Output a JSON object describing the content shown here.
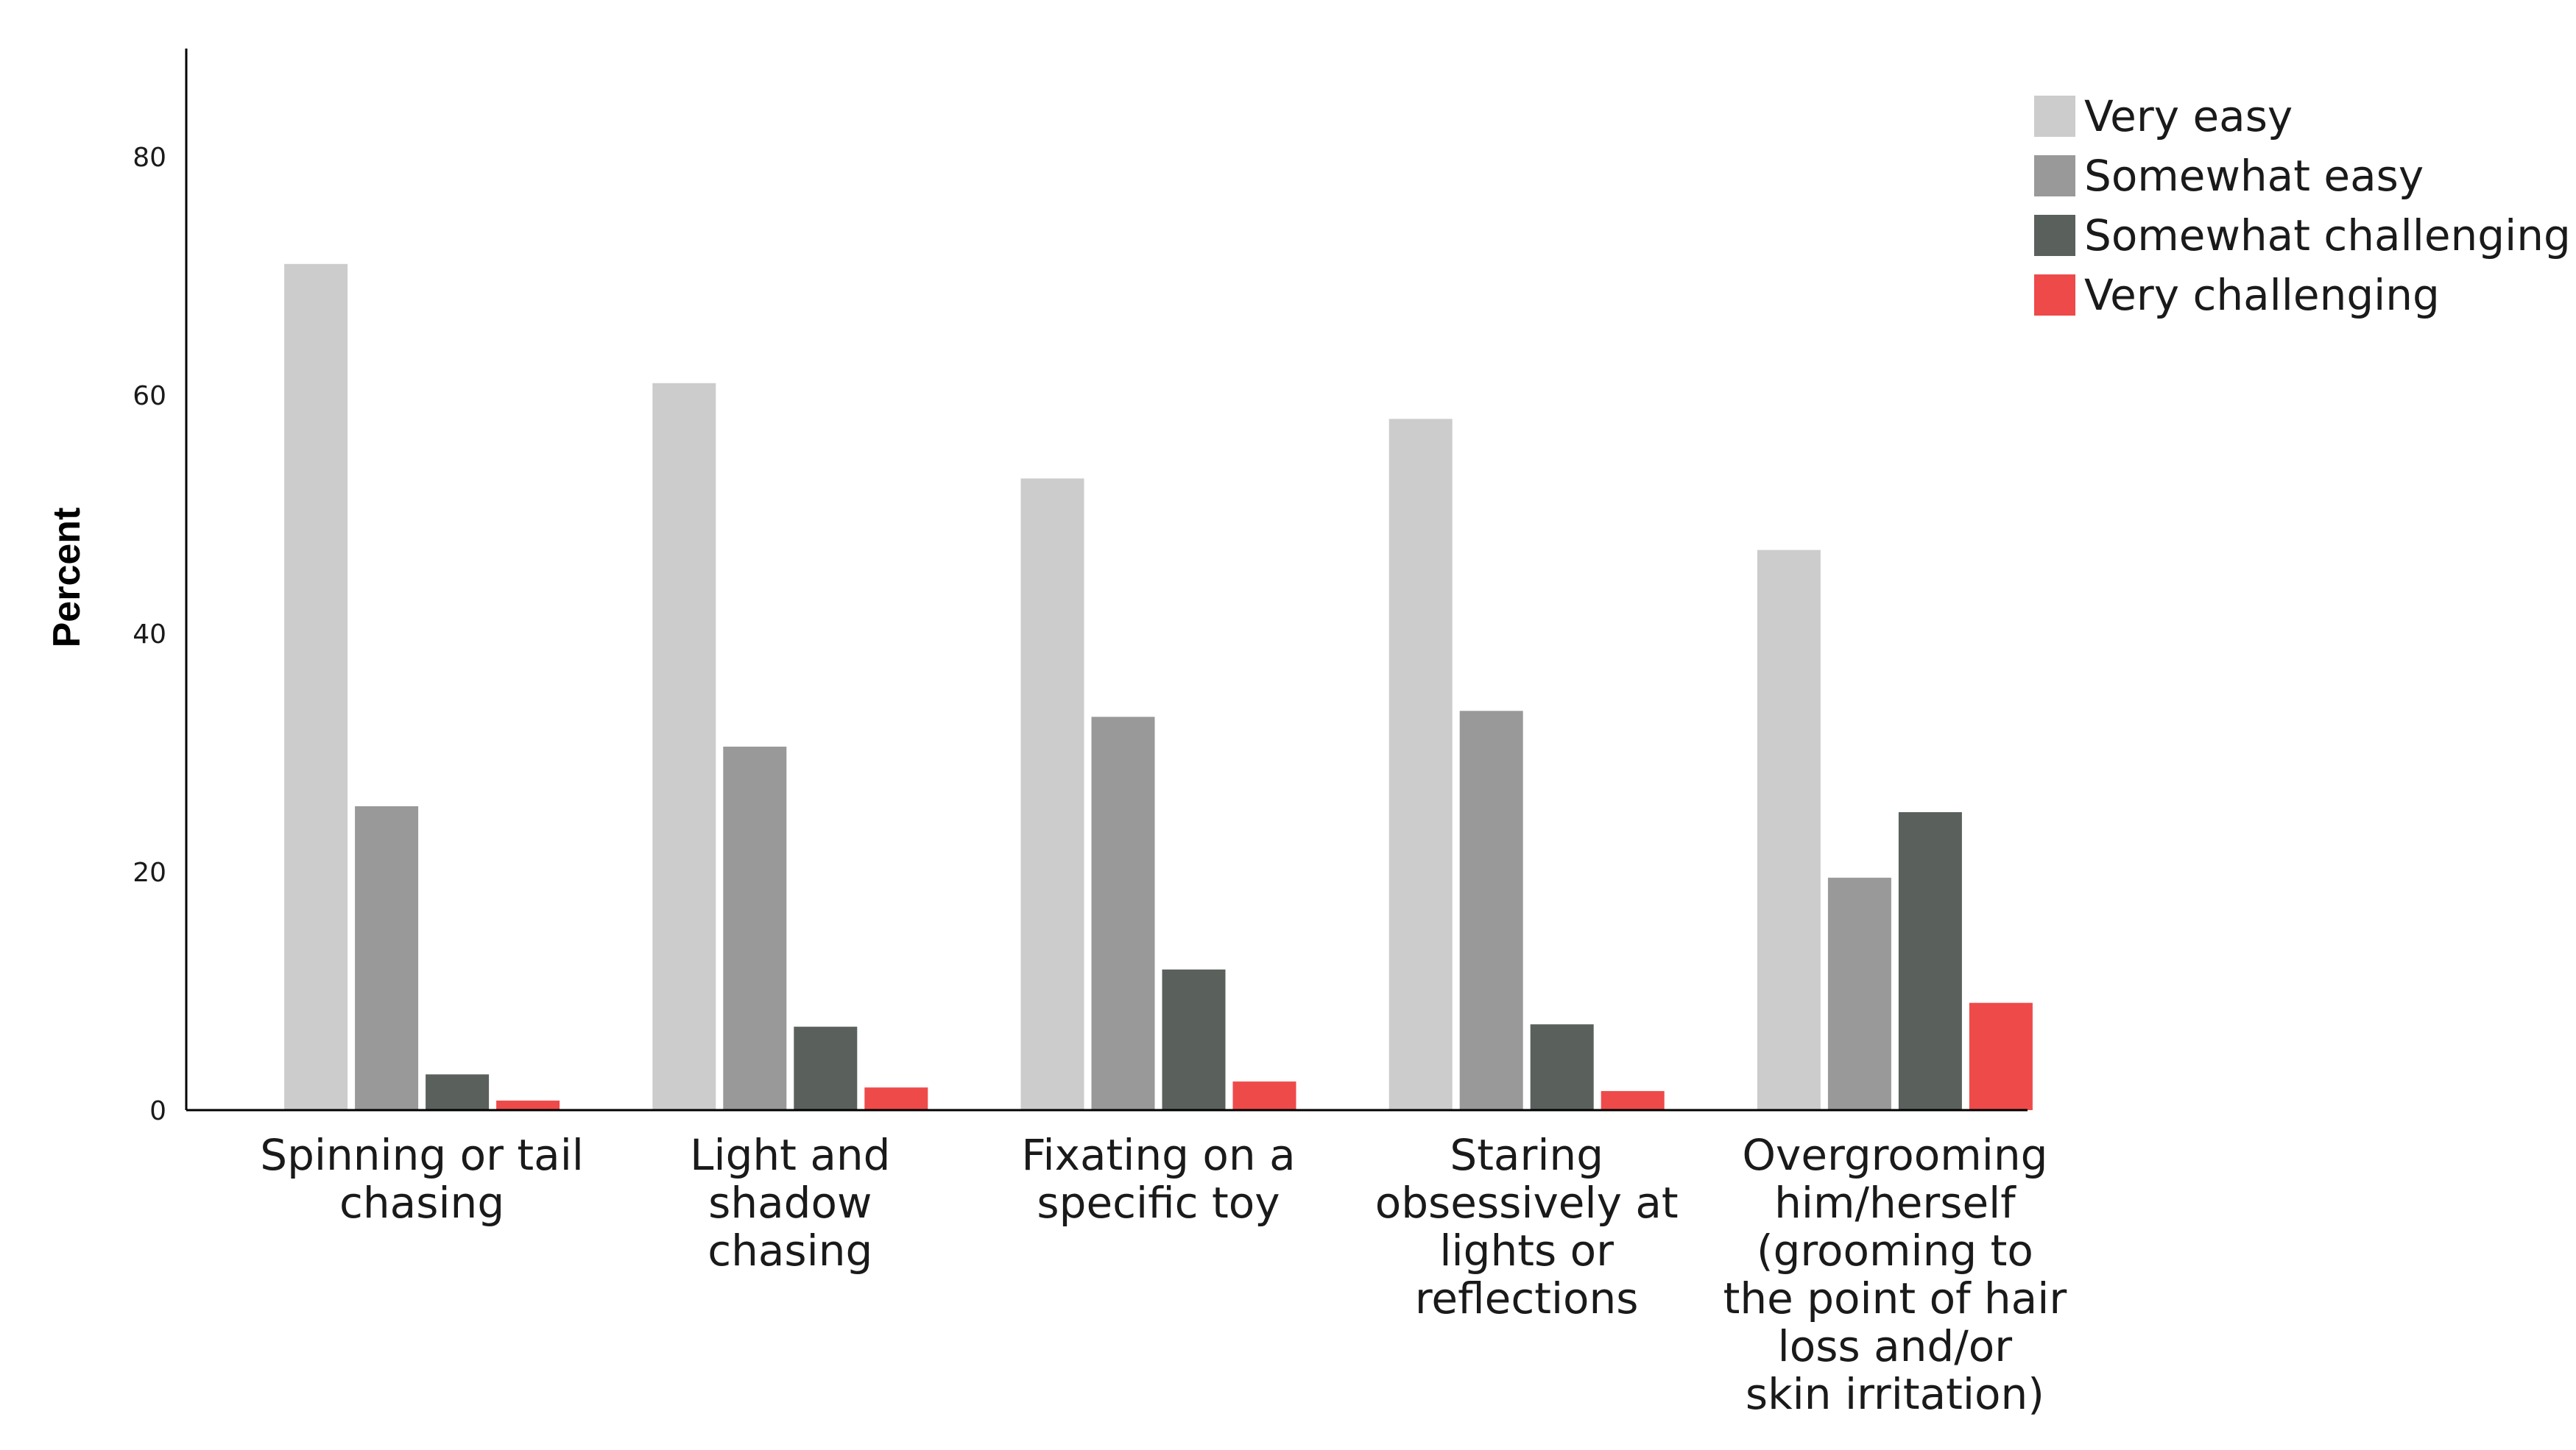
{
  "chart_data": {
    "type": "bar",
    "title": "",
    "xlabel": "",
    "ylabel": "Percent",
    "ylim": [
      0,
      89
    ],
    "yticks": [
      0,
      20,
      40,
      60,
      80
    ],
    "grid": false,
    "legend_position": "top-right",
    "categories": [
      [
        "Spinning or tail",
        "chasing"
      ],
      [
        "Light and",
        "shadow",
        "chasing"
      ],
      [
        "Fixating on a",
        "specific toy"
      ],
      [
        "Staring",
        "obsessively at",
        "lights or",
        "reflections"
      ],
      [
        "Overgrooming",
        "him/herself",
        "(grooming to",
        "the point of hair",
        "loss and/or",
        "skin irritation)"
      ]
    ],
    "series": [
      {
        "name": "Very easy",
        "color": "#cccccc",
        "values": [
          71,
          61,
          53,
          58,
          47
        ]
      },
      {
        "name": "Somewhat easy",
        "color": "#999999",
        "values": [
          25.5,
          30.5,
          33,
          33.5,
          19.5
        ]
      },
      {
        "name": "Somewhat challenging",
        "color": "#5a605c",
        "values": [
          3,
          7,
          11.8,
          7.2,
          25
        ]
      },
      {
        "name": "Very challenging",
        "color": "#ee4a4a",
        "values": [
          0.8,
          1.9,
          2.4,
          1.6,
          9
        ]
      }
    ]
  }
}
